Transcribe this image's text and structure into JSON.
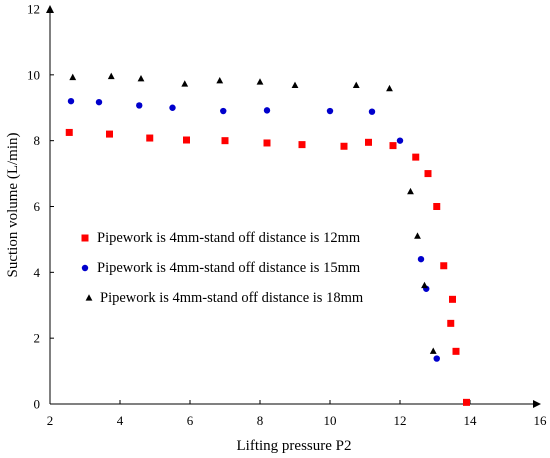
{
  "chart_data": {
    "type": "scatter",
    "xlabel": "Lifting pressure P2",
    "ylabel": "Suction volume (L/min)",
    "xlim": [
      2,
      16
    ],
    "ylim": [
      0,
      12
    ],
    "x_ticks": [
      "2",
      "4",
      "6",
      "8",
      "10",
      "12",
      "14",
      "16"
    ],
    "y_ticks": [
      "0",
      "2",
      "4",
      "6",
      "8",
      "10",
      "12"
    ],
    "grid": false,
    "legend_position": "center-left",
    "series": [
      {
        "name": "Pipework is 4mm-stand off distance is 12mm",
        "marker": "square",
        "color": "#ff0000",
        "points": [
          [
            2.55,
            8.25
          ],
          [
            3.7,
            8.2
          ],
          [
            4.85,
            8.08
          ],
          [
            5.9,
            8.02
          ],
          [
            7.0,
            8.0
          ],
          [
            8.2,
            7.93
          ],
          [
            9.2,
            7.88
          ],
          [
            10.4,
            7.83
          ],
          [
            11.1,
            7.95
          ],
          [
            11.8,
            7.85
          ],
          [
            12.45,
            7.5
          ],
          [
            12.8,
            7.0
          ],
          [
            13.05,
            6.0
          ],
          [
            13.25,
            4.2
          ],
          [
            13.5,
            3.18
          ],
          [
            13.45,
            2.45
          ],
          [
            13.6,
            1.6
          ],
          [
            13.9,
            0.05
          ]
        ]
      },
      {
        "name": "Pipework is 4mm-stand off distance is 15mm",
        "marker": "circle",
        "color": "#0000cc",
        "points": [
          [
            2.6,
            9.2
          ],
          [
            3.4,
            9.17
          ],
          [
            4.55,
            9.07
          ],
          [
            5.5,
            9.0
          ],
          [
            6.95,
            8.9
          ],
          [
            8.2,
            8.92
          ],
          [
            10.0,
            8.9
          ],
          [
            11.2,
            8.88
          ],
          [
            12.0,
            8.0
          ],
          [
            12.6,
            4.4
          ],
          [
            12.75,
            3.5
          ],
          [
            13.05,
            1.38
          ]
        ]
      },
      {
        "name": "Pipework is 4mm-stand off distance is 18mm",
        "marker": "triangle",
        "color": "#000000",
        "points": [
          [
            2.65,
            9.92
          ],
          [
            3.75,
            9.95
          ],
          [
            4.6,
            9.88
          ],
          [
            5.85,
            9.72
          ],
          [
            6.85,
            9.82
          ],
          [
            8.0,
            9.78
          ],
          [
            9.0,
            9.68
          ],
          [
            10.75,
            9.68
          ],
          [
            11.7,
            9.58
          ],
          [
            12.3,
            6.45
          ],
          [
            12.5,
            5.1
          ],
          [
            12.7,
            3.6
          ],
          [
            12.95,
            1.6
          ]
        ]
      }
    ]
  }
}
